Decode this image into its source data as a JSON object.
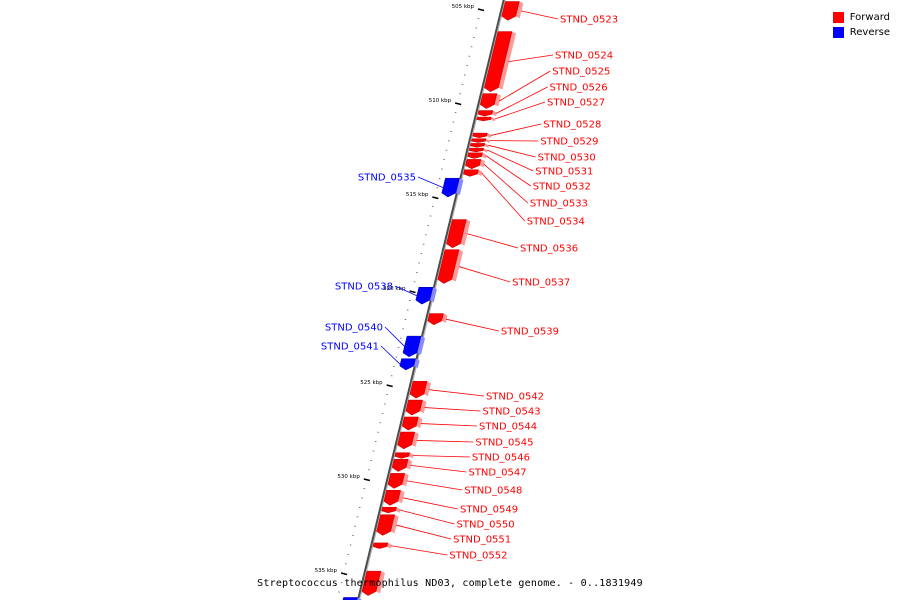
{
  "legend": {
    "items": [
      {
        "label": "Forward",
        "color": "#ff0000"
      },
      {
        "label": "Reverse",
        "color": "#0000ff"
      }
    ]
  },
  "caption": "Streptococcus thermophilus ND03, complete genome. - 0..1831949",
  "colors": {
    "forward": "#ff0000",
    "reverse": "#0000ff",
    "backbone": "#808080"
  },
  "ticks": [
    {
      "label": "505 kbp",
      "kbp": 505
    },
    {
      "label": "510 kbp",
      "kbp": 510
    },
    {
      "label": "515 kbp",
      "kbp": 515
    },
    {
      "label": "520 kbp",
      "kbp": 520
    },
    {
      "label": "525 kbp",
      "kbp": 525
    },
    {
      "label": "530 kbp",
      "kbp": 530
    },
    {
      "label": "535 kbp",
      "kbp": 535
    }
  ],
  "genes": [
    {
      "name": "STND_0523",
      "strand": "forward",
      "start_kbp": 504.6,
      "end_kbp": 505.6
    },
    {
      "name": "STND_0524",
      "strand": "forward",
      "start_kbp": 506.2,
      "end_kbp": 509.4
    },
    {
      "name": "STND_0525",
      "strand": "forward",
      "start_kbp": 509.5,
      "end_kbp": 510.3
    },
    {
      "name": "STND_0526",
      "strand": "forward",
      "start_kbp": 510.4,
      "end_kbp": 510.7
    },
    {
      "name": "STND_0527",
      "strand": "forward",
      "start_kbp": 510.75,
      "end_kbp": 510.95
    },
    {
      "name": "STND_0528",
      "strand": "forward",
      "start_kbp": 511.6,
      "end_kbp": 511.85
    },
    {
      "name": "STND_0529",
      "strand": "forward",
      "start_kbp": 511.9,
      "end_kbp": 512.1
    },
    {
      "name": "STND_0530",
      "strand": "forward",
      "start_kbp": 512.15,
      "end_kbp": 512.35
    },
    {
      "name": "STND_0531",
      "strand": "forward",
      "start_kbp": 512.4,
      "end_kbp": 512.6
    },
    {
      "name": "STND_0532",
      "strand": "forward",
      "start_kbp": 512.65,
      "end_kbp": 512.95
    },
    {
      "name": "STND_0533",
      "strand": "forward",
      "start_kbp": 513.0,
      "end_kbp": 513.5
    },
    {
      "name": "STND_0534",
      "strand": "forward",
      "start_kbp": 513.55,
      "end_kbp": 513.9
    },
    {
      "name": "STND_0535",
      "strand": "reverse",
      "start_kbp": 514.0,
      "end_kbp": 515.0
    },
    {
      "name": "STND_0536",
      "strand": "forward",
      "start_kbp": 516.2,
      "end_kbp": 517.7
    },
    {
      "name": "STND_0537",
      "strand": "forward",
      "start_kbp": 517.8,
      "end_kbp": 519.6
    },
    {
      "name": "STND_0538",
      "strand": "reverse",
      "start_kbp": 519.8,
      "end_kbp": 520.7
    },
    {
      "name": "STND_0539",
      "strand": "forward",
      "start_kbp": 521.2,
      "end_kbp": 521.8
    },
    {
      "name": "STND_0540",
      "strand": "reverse",
      "start_kbp": 522.4,
      "end_kbp": 523.5
    },
    {
      "name": "STND_0541",
      "strand": "reverse",
      "start_kbp": 523.6,
      "end_kbp": 524.2
    },
    {
      "name": "STND_0542",
      "strand": "forward",
      "start_kbp": 524.8,
      "end_kbp": 525.7
    },
    {
      "name": "STND_0543",
      "strand": "forward",
      "start_kbp": 525.8,
      "end_kbp": 526.6
    },
    {
      "name": "STND_0544",
      "strand": "forward",
      "start_kbp": 526.7,
      "end_kbp": 527.4
    },
    {
      "name": "STND_0545",
      "strand": "forward",
      "start_kbp": 527.5,
      "end_kbp": 528.4
    },
    {
      "name": "STND_0546",
      "strand": "forward",
      "start_kbp": 528.6,
      "end_kbp": 528.9
    },
    {
      "name": "STND_0547",
      "strand": "forward",
      "start_kbp": 528.95,
      "end_kbp": 529.6
    },
    {
      "name": "STND_0548",
      "strand": "forward",
      "start_kbp": 529.7,
      "end_kbp": 530.5
    },
    {
      "name": "STND_0549",
      "strand": "forward",
      "start_kbp": 530.6,
      "end_kbp": 531.4
    },
    {
      "name": "STND_0550",
      "strand": "forward",
      "start_kbp": 531.5,
      "end_kbp": 531.8
    },
    {
      "name": "STND_0551",
      "strand": "forward",
      "start_kbp": 531.9,
      "end_kbp": 533.0
    },
    {
      "name": "STND_0552",
      "strand": "forward",
      "start_kbp": 533.4,
      "end_kbp": 533.7
    },
    {
      "name": "",
      "strand": "forward",
      "start_kbp": 534.9,
      "end_kbp": 536.2
    },
    {
      "name": "",
      "strand": "reverse",
      "start_kbp": 536.3,
      "end_kbp": 537.0
    }
  ]
}
